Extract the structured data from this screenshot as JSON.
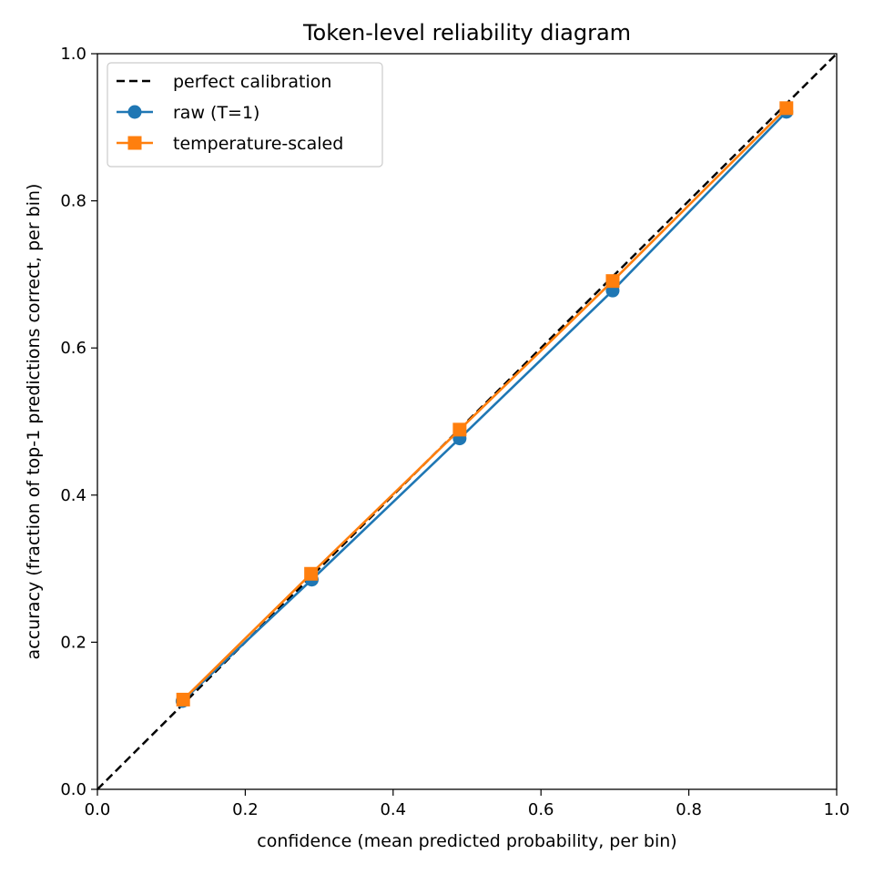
{
  "chart_data": {
    "type": "line",
    "title": "Token-level reliability diagram",
    "xlabel": "confidence (mean predicted probability, per bin)",
    "ylabel": "accuracy (fraction of top-1 predictions correct, per bin)",
    "xlim": [
      0.0,
      1.0
    ],
    "ylim": [
      0.0,
      1.0
    ],
    "xticks": [
      "0.0",
      "0.2",
      "0.4",
      "0.6",
      "0.8",
      "1.0"
    ],
    "yticks": [
      "0.0",
      "0.2",
      "0.4",
      "0.6",
      "0.8",
      "1.0"
    ],
    "grid": false,
    "legend_position": "top-left",
    "series": [
      {
        "name": "perfect calibration",
        "style": "dashed",
        "color": "#000000",
        "marker": "none",
        "x": [
          0.0,
          1.0
        ],
        "y": [
          0.0,
          1.0
        ]
      },
      {
        "name": "raw (T=1)",
        "style": "solid",
        "color": "#1f77b4",
        "marker": "circle",
        "x": [
          0.115,
          0.29,
          0.49,
          0.697,
          0.932
        ],
        "y": [
          0.12,
          0.285,
          0.477,
          0.678,
          0.921
        ]
      },
      {
        "name": "temperature-scaled",
        "style": "solid",
        "color": "#ff7f0e",
        "marker": "square",
        "x": [
          0.116,
          0.289,
          0.49,
          0.697,
          0.932
        ],
        "y": [
          0.122,
          0.293,
          0.489,
          0.691,
          0.926
        ]
      }
    ]
  }
}
